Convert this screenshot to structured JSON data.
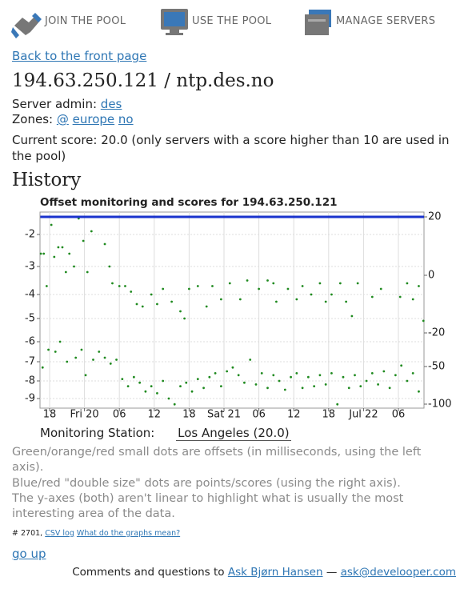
{
  "nav": [
    "JOIN THE POOL",
    "USE THE POOL",
    "MANAGE SERVERS"
  ],
  "back_link": "Back to the front page",
  "heading": "194.63.250.121 / ntp.des.no",
  "server_admin": {
    "label": "Server admin:",
    "name": "des"
  },
  "zones": {
    "label": "Zones:",
    "items": [
      "@",
      "europe",
      "no"
    ]
  },
  "current_score": "Current score: 20.0 (only servers with a score higher than 10 are used in the pool)",
  "history_heading": "History",
  "chart_data": {
    "type": "scatter",
    "title": "Offset monitoring and scores for 194.63.250.121",
    "xlim": [
      -1.65,
      64.4
    ],
    "xticks": [
      {
        "value": 0,
        "label": "18"
      },
      {
        "value": 6,
        "label": "Fri 20"
      },
      {
        "value": 12,
        "label": "06"
      },
      {
        "value": 18,
        "label": "12"
      },
      {
        "value": 24,
        "label": "18"
      },
      {
        "value": 30,
        "label": "Sat 21"
      },
      {
        "value": 36,
        "label": "06"
      },
      {
        "value": 42,
        "label": "12"
      },
      {
        "value": 48,
        "label": "18"
      },
      {
        "value": 54,
        "label": "Jul 22"
      },
      {
        "value": 60,
        "label": "06"
      }
    ],
    "ylim": [
      -9.5,
      -1.3
    ],
    "yticks": [
      -9,
      -8,
      -7,
      -6,
      -5,
      -4,
      -3,
      -2
    ],
    "y2lim": [
      -105,
      22
    ],
    "y2ticks": [
      -100,
      -50,
      -20,
      0,
      20
    ],
    "grid": true,
    "series": [
      {
        "name": "offset",
        "color": "#1f8a1f",
        "x": [
          -1.5,
          -1,
          -0.5,
          0.3,
          0.8,
          1.5,
          2.2,
          2.8,
          3.4,
          4.2,
          5,
          5.8,
          6.5,
          7.2,
          9.5,
          10.3,
          10.8,
          12,
          13,
          14,
          15,
          16,
          17.5,
          18.5,
          19.5,
          21,
          22.5,
          23.2,
          24,
          25.5,
          27,
          28,
          29.5,
          31,
          32.8,
          34,
          36,
          37.5,
          38.5,
          39,
          41,
          42.5,
          43.5,
          45,
          46.5,
          47.5,
          48.5,
          50,
          51,
          52,
          53,
          55.5,
          57,
          60.3,
          61.5,
          62.5,
          63.5,
          64.3,
          -1.2,
          -0.2,
          1,
          1.8,
          3,
          4.5,
          5.5,
          6.2,
          7.5,
          8.5,
          9.5,
          10.5,
          11.5,
          12.5,
          13.5,
          14.5,
          15.5,
          16.5,
          17.5,
          18.5,
          19.5,
          20.5,
          21.5,
          22.5,
          23.5,
          24.5,
          25.5,
          26.5,
          27.5,
          28.5,
          29.5,
          30.5,
          31.5,
          32.5,
          33.5,
          34.5,
          35.5,
          36.5,
          37.5,
          38.5,
          39.5,
          40.5,
          41.5,
          42.5,
          43.5,
          44.5,
          45.5,
          46.5,
          47.5,
          48.5,
          49.5,
          50.5,
          51.5,
          52.5,
          53.5,
          54.5,
          55.5,
          56.5,
          57.5,
          58.5,
          59.5,
          60.5,
          61.5,
          62.5,
          63.5
        ],
        "values": [
          -2.6,
          -2.6,
          -3.7,
          -1.7,
          -2.7,
          -2.4,
          -2.4,
          -3.2,
          -2.6,
          -3,
          -1.5,
          -2.2,
          -3.2,
          -1.9,
          -2.3,
          -3,
          -3.6,
          -3.7,
          -3.7,
          -3.9,
          -4.4,
          -4.5,
          -4,
          -4.4,
          -3.8,
          -4.3,
          -4.7,
          -5,
          -3.8,
          -3.7,
          -4.5,
          -3.7,
          -4.2,
          -3.6,
          -4.2,
          -3.5,
          -3.8,
          -3.5,
          -3.6,
          -4.3,
          -3.8,
          -4.2,
          -3.7,
          -4,
          -3.6,
          -4.3,
          -4,
          -3.6,
          -4.3,
          -4.9,
          -3.6,
          -4.1,
          -3.8,
          -4.1,
          -3.6,
          -4.2,
          -3.7,
          -5.1,
          -7.3,
          -6.4,
          -6.5,
          -6,
          -7,
          -6.8,
          -6.4,
          -7.7,
          -6.9,
          -6.5,
          -6.8,
          -7.1,
          -6.9,
          -7.9,
          -8.3,
          -7.8,
          -8.1,
          -8.6,
          -8.3,
          -8.7,
          -8,
          -9,
          -9.3,
          -8.3,
          -8.1,
          -8.6,
          -7.9,
          -8.4,
          -7.8,
          -7.6,
          -8.3,
          -7.5,
          -7.3,
          -7.7,
          -8.1,
          -6.9,
          -8.2,
          -7.6,
          -8.4,
          -7.7,
          -8,
          -8.5,
          -7.8,
          -7.6,
          -8.4,
          -7.8,
          -8.3,
          -7.7,
          -8.2,
          -7.6,
          -9.3,
          -7.8,
          -8.4,
          -7.7,
          -8.3,
          -8,
          -7.6,
          -8.2,
          -7.5,
          -8.4,
          -7.7,
          -7.2,
          -8,
          -7.6,
          -8.6
        ]
      },
      {
        "name": "score",
        "color": "#1a33cc",
        "axis": "y2",
        "x": [
          -1.6,
          64.4
        ],
        "values": [
          20,
          20
        ]
      }
    ]
  },
  "monitoring": {
    "label": "Monitoring Station:",
    "station": "Los Angeles (20.0)"
  },
  "notes": [
    "Green/orange/red small dots are offsets (in milliseconds, using the left axis).",
    "Blue/red \"double size\" dots are points/scores (using the right axis).",
    "The y-axes (both) aren't linear to highlight what is usually the most interesting area of the data."
  ],
  "links_line": {
    "prefix": "# 2701,",
    "csv": "CSV log",
    "help": "What do the graphs mean?"
  },
  "go_up": "go up",
  "footer": {
    "text": "Comments and questions to",
    "name": "Ask Bjørn Hansen",
    "dash": "—",
    "email": "ask@develooper.com"
  }
}
